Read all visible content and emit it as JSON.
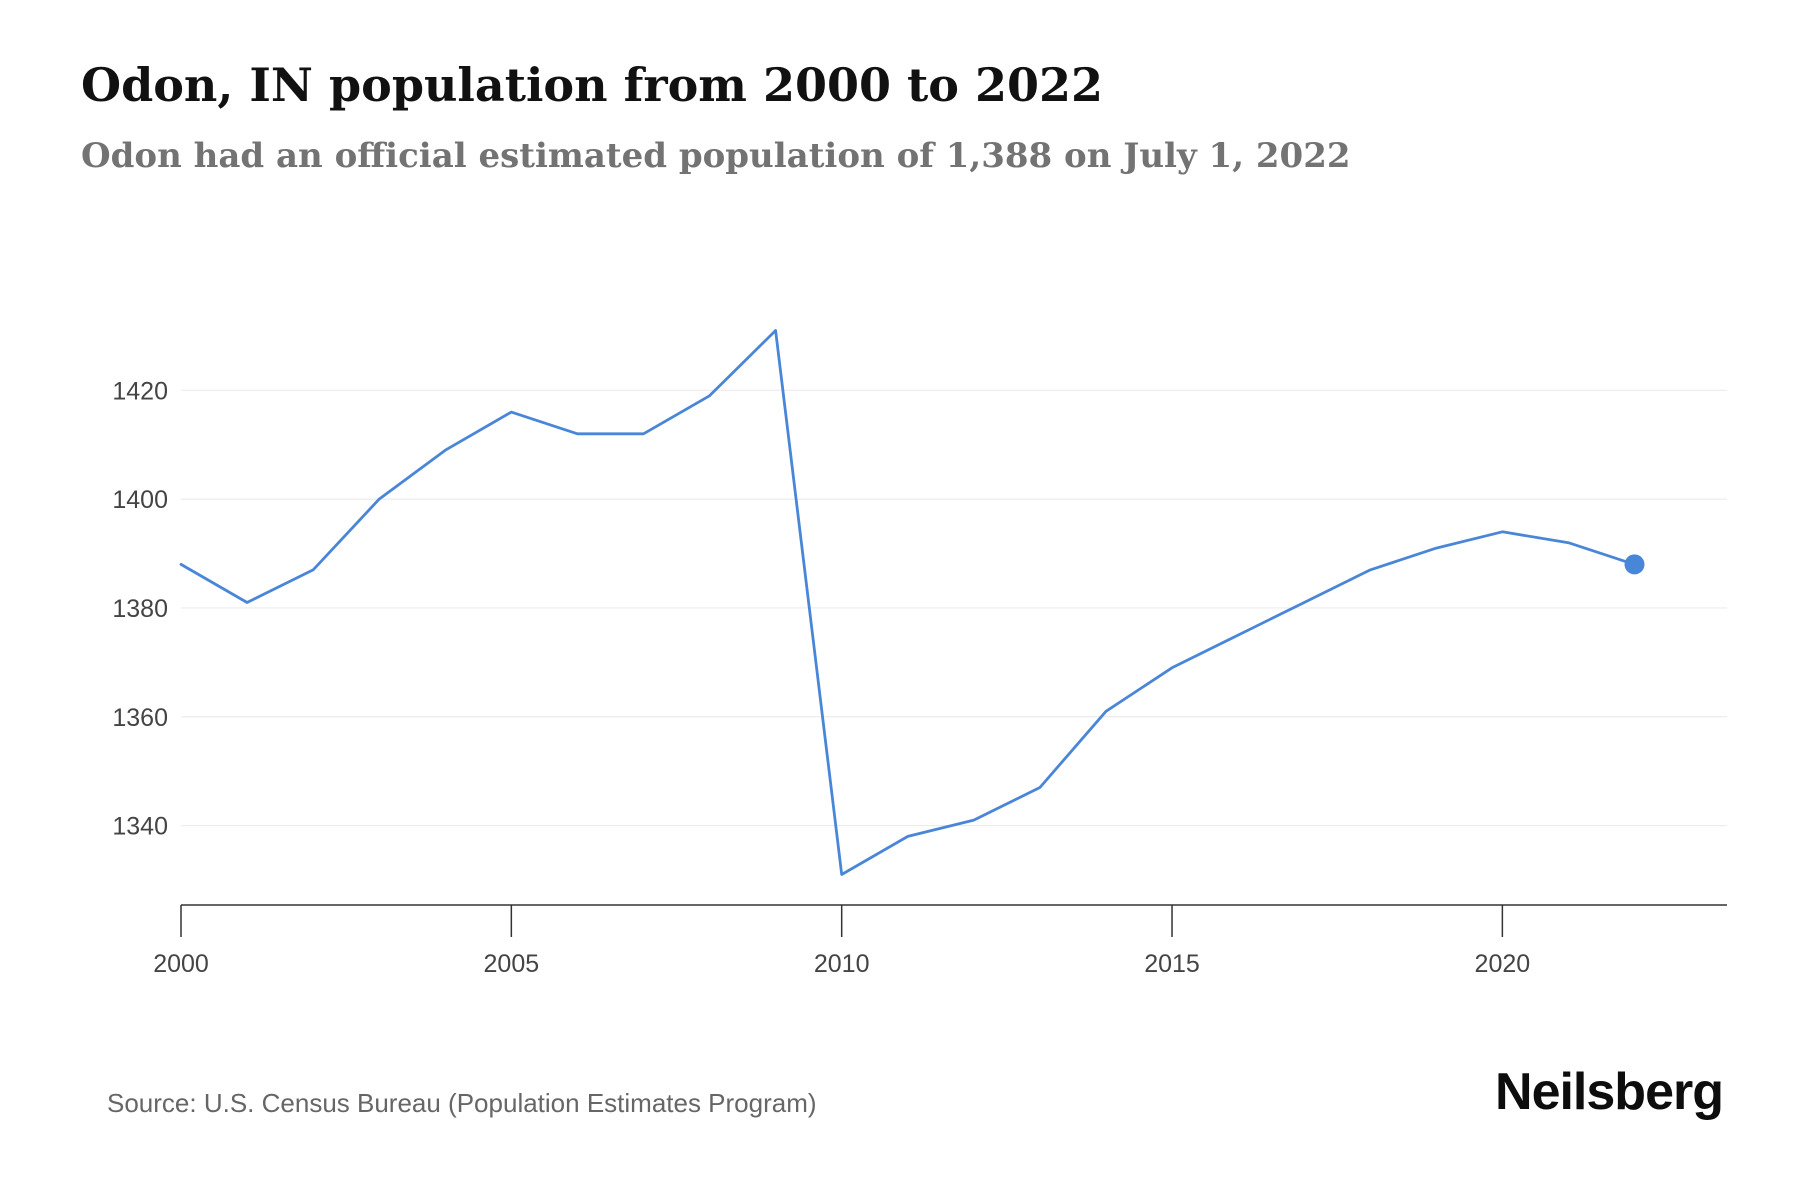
{
  "header": {
    "title": "Odon, IN population from 2000 to 2022",
    "subtitle": "Odon had an official estimated population of 1,388 on July 1, 2022"
  },
  "footer": {
    "source": "Source: U.S. Census Bureau (Population Estimates Program)",
    "brand": "Neilsberg"
  },
  "colors": {
    "line": "#4a86d8",
    "grid": "#ececec",
    "axis": "#333333"
  },
  "chart_data": {
    "type": "line",
    "x": [
      2000,
      2001,
      2002,
      2003,
      2004,
      2005,
      2006,
      2007,
      2008,
      2009,
      2010,
      2011,
      2012,
      2013,
      2014,
      2015,
      2016,
      2017,
      2018,
      2019,
      2020,
      2021,
      2022
    ],
    "series": [
      {
        "values": [
          1388,
          1381,
          1387,
          1400,
          1409,
          1416,
          1412,
          1412,
          1419,
          1431,
          1331,
          1338,
          1341,
          1347,
          1361,
          1369,
          1375,
          1381,
          1387,
          1391,
          1394,
          1392,
          1388
        ]
      }
    ],
    "xticks": [
      2000,
      2005,
      2010,
      2015,
      2020
    ],
    "yticks": [
      1340,
      1360,
      1380,
      1400,
      1420
    ],
    "xlim": [
      2000,
      2023.4
    ],
    "ylim": [
      1325.4,
      1436.6
    ],
    "grid": "horizontal",
    "highlight_last_point": true
  }
}
